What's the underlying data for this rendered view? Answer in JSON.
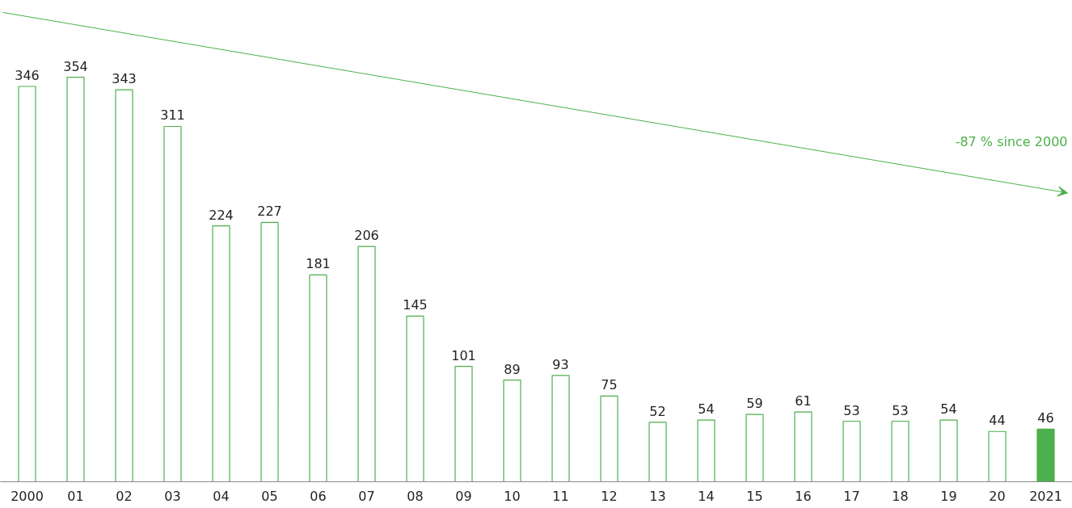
{
  "chart_data": {
    "type": "bar",
    "categories": [
      "2000",
      "01",
      "02",
      "03",
      "04",
      "05",
      "06",
      "07",
      "08",
      "09",
      "10",
      "11",
      "12",
      "13",
      "14",
      "15",
      "16",
      "17",
      "18",
      "19",
      "20",
      "2021"
    ],
    "values": [
      346,
      354,
      343,
      311,
      224,
      227,
      181,
      206,
      145,
      101,
      89,
      93,
      75,
      52,
      54,
      59,
      61,
      53,
      53,
      54,
      44,
      46
    ],
    "color": "#4cb04c",
    "colors": [
      "#ffffff",
      "#ffffff",
      "#ffffff",
      "#ffffff",
      "#ffffff",
      "#ffffff",
      "#ffffff",
      "#ffffff",
      "#ffffff",
      "#ffffff",
      "#ffffff",
      "#ffffff",
      "#ffffff",
      "#ffffff",
      "#ffffff",
      "#ffffff",
      "#ffffff",
      "#ffffff",
      "#ffffff",
      "#ffffff",
      "#ffffff",
      "#4cb04c"
    ],
    "data_labels": true,
    "grid": false,
    "annotations": [
      "-87 % since 2000"
    ]
  }
}
